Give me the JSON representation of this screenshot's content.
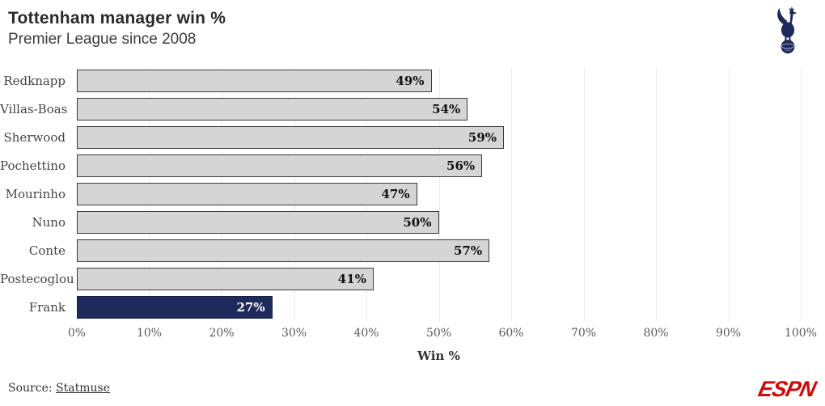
{
  "header": {
    "title": "Tottenham manager win %",
    "subtitle": "Premier League since 2008"
  },
  "chart_data": {
    "type": "bar",
    "orientation": "horizontal",
    "title": "Tottenham manager win %",
    "subtitle": "Premier League since 2008",
    "categories": [
      "Redknapp",
      "Villas-Boas",
      "Sherwood",
      "Pochettino",
      "Mourinho",
      "Nuno",
      "Conte",
      "Postecoglou",
      "Frank"
    ],
    "values": [
      49,
      54,
      59,
      56,
      47,
      50,
      57,
      41,
      27
    ],
    "value_labels": [
      "49%",
      "54%",
      "59%",
      "56%",
      "47%",
      "50%",
      "57%",
      "41%",
      "27%"
    ],
    "highlight_category": "Frank",
    "xlabel": "Win %",
    "xlim": [
      0,
      100
    ],
    "x_ticks": [
      "0%",
      "10%",
      "20%",
      "30%",
      "40%",
      "50%",
      "60%",
      "70%",
      "80%",
      "90%",
      "100%"
    ],
    "grid": "vertical",
    "legend": "none",
    "bar_color": "#d5d5d5",
    "bar_border_color": "#3b3b3b",
    "highlight_color": "#1e2a5c",
    "gridline_color": "#ececec"
  },
  "footer": {
    "source_prefix": "Source: ",
    "source_link": "Statmuse",
    "brand": "ESPN"
  },
  "icons": {
    "club_crest": "tottenham-hotspur-cockerel-on-ball",
    "crest_color": "#1e2a5c",
    "brand_color": "#cf0a0a"
  }
}
